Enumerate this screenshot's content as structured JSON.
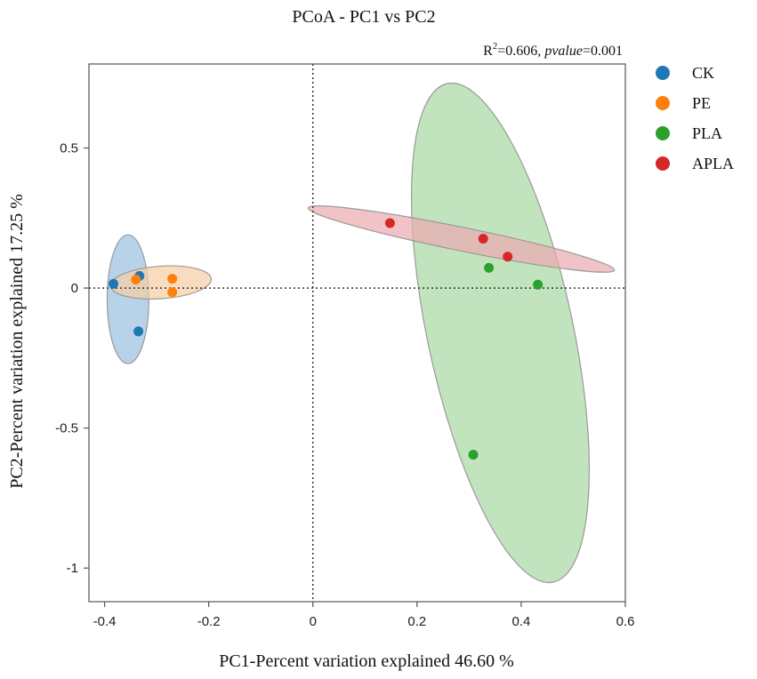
{
  "chart_data": {
    "type": "scatter",
    "title": "PCoA - PC1 vs PC2",
    "annotation": {
      "r2_prefix": "R",
      "r2_sup": "2",
      "r2_value": "=0.606, ",
      "p_label": "pvalue",
      "p_value": "=0.001"
    },
    "xlabel": "PC1-Percent variation explained 46.60 %",
    "ylabel": "PC2-Percent variation explained 17.25 %",
    "xlim": [
      -0.43,
      0.6
    ],
    "ylim": [
      -1.12,
      0.8
    ],
    "xticks": [
      -0.4,
      -0.2,
      0,
      0.2,
      0.4,
      0.6
    ],
    "xtick_labels": [
      "-0.4",
      "-0.2",
      "0",
      "0.2",
      "0.4",
      "0.6"
    ],
    "yticks": [
      0.5,
      0,
      -0.5,
      -1
    ],
    "ytick_labels": [
      "0.5",
      "0",
      "-0.5",
      "-1"
    ],
    "reference_lines": {
      "x": 0,
      "y": 0,
      "style": "dotted"
    },
    "legend_position": "right",
    "series": [
      {
        "name": "CK",
        "color": "#1f77b4",
        "fill": "#9dc0e0",
        "points": [
          [
            -0.383,
            0.015
          ],
          [
            -0.333,
            0.043
          ],
          [
            -0.335,
            -0.155
          ]
        ],
        "ellipse": {
          "cx": -0.355,
          "cy": -0.04,
          "rx_data": 0.04,
          "ry_data": 0.23,
          "angle_deg": 0
        }
      },
      {
        "name": "PE",
        "color": "#ff7f0e",
        "fill": "#f7cfa3",
        "points": [
          [
            -0.34,
            0.03
          ],
          [
            -0.27,
            0.033
          ],
          [
            -0.27,
            -0.015
          ]
        ],
        "ellipse": {
          "cx": -0.292,
          "cy": 0.02,
          "rx_data": 0.097,
          "ry_data": 0.058,
          "angle_deg": -4
        }
      },
      {
        "name": "PLA",
        "color": "#2ca02c",
        "fill": "#a9d8a4",
        "points": [
          [
            0.338,
            0.072
          ],
          [
            0.432,
            0.012
          ],
          [
            0.308,
            -0.595
          ]
        ],
        "ellipse": {
          "cx": 0.36,
          "cy": -0.16,
          "rx_data": 0.14,
          "ry_data": 0.91,
          "angle_deg": -12
        }
      },
      {
        "name": "APLA",
        "color": "#d62728",
        "fill": "#ecaab0",
        "points": [
          [
            0.148,
            0.232
          ],
          [
            0.327,
            0.176
          ],
          [
            0.374,
            0.112
          ]
        ],
        "ellipse": {
          "cx": 0.285,
          "cy": 0.175,
          "rx_data": 0.3,
          "ry_data": 0.042,
          "angle_deg": 11.5
        }
      }
    ]
  }
}
